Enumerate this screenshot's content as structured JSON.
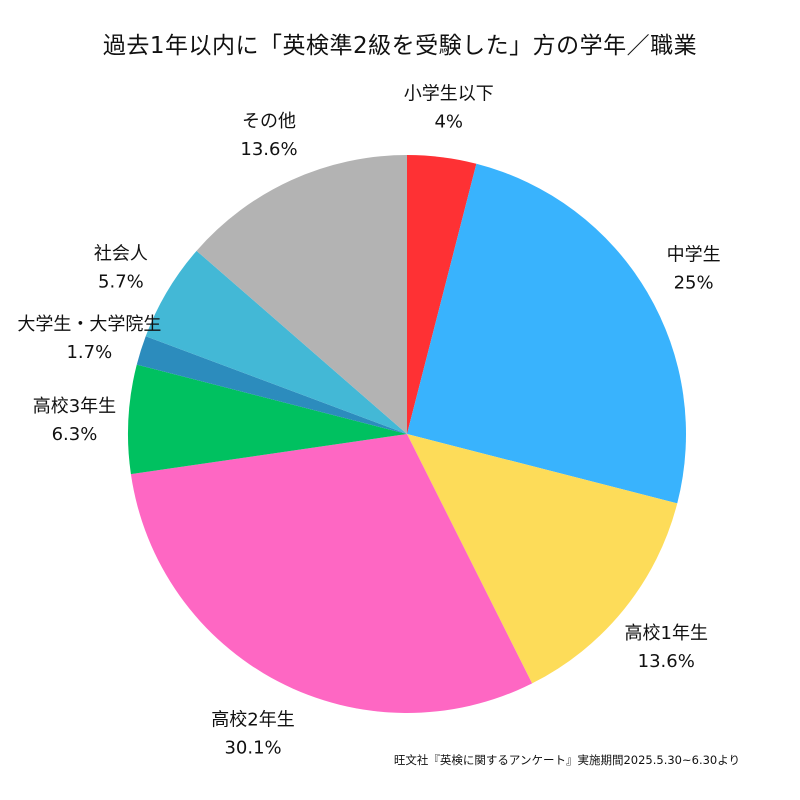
{
  "chart_data": {
    "type": "pie",
    "title": "過去1年以内に「英検準2級を受験した」方の学年／職業",
    "start_angle_deg": 0,
    "direction": "clockwise",
    "slices": [
      {
        "label": "小学生以下",
        "value": 4,
        "value_text": "4%",
        "color": "#fe3134"
      },
      {
        "label": "中学生",
        "value": 25,
        "value_text": "25%",
        "color": "#39b3fd"
      },
      {
        "label": "高校1年生",
        "value": 13.6,
        "value_text": "13.6%",
        "color": "#fddc59"
      },
      {
        "label": "高校2年生",
        "value": 30.1,
        "value_text": "30.1%",
        "color": "#fe67c3"
      },
      {
        "label": "高校3年生",
        "value": 6.3,
        "value_text": "6.3%",
        "color": "#00c160"
      },
      {
        "label": "大学生・大学院生",
        "value": 1.7,
        "value_text": "1.7%",
        "color": "#2c8cbd"
      },
      {
        "label": "社会人",
        "value": 5.7,
        "value_text": "5.7%",
        "color": "#43b8d6"
      },
      {
        "label": "その他",
        "value": 13.6,
        "value_text": "13.6%",
        "color": "#b3b3b3"
      }
    ]
  },
  "source_note": "旺文社『英検に関するアンケート』実施期間2025.5.30~6.30より"
}
